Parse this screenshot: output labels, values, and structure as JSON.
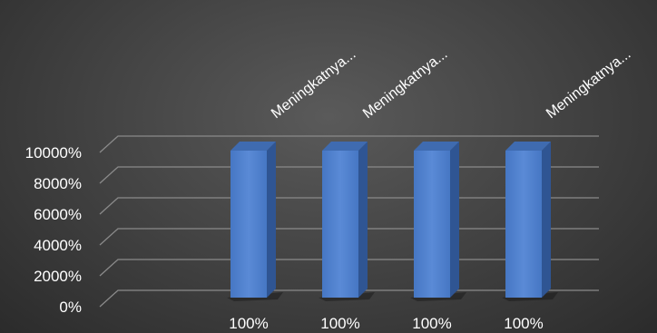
{
  "chart_data": {
    "type": "bar",
    "bar_3d": true,
    "categories": [
      "100%",
      "100%",
      "100%",
      "100%"
    ],
    "series_labels": [
      "Meningkatnya...",
      "Meningkatnya...",
      "",
      "Meningkatnya..."
    ],
    "values": [
      10000,
      10000,
      10000,
      10000
    ],
    "ylim": [
      0,
      10000
    ],
    "y_ticks": [
      0,
      2000,
      4000,
      6000,
      8000,
      10000
    ],
    "y_tick_labels": [
      "0%",
      "2000%",
      "4000%",
      "6000%",
      "8000%",
      "10000%"
    ],
    "grid": true,
    "title": "",
    "xlabel": "",
    "ylabel": "",
    "colors": {
      "bar_front": "#4a7cc7",
      "bar_side": "#2f5593",
      "bar_top": "#3f6bb0",
      "grid": "#8a8a8a",
      "text": "#ffffff"
    }
  }
}
